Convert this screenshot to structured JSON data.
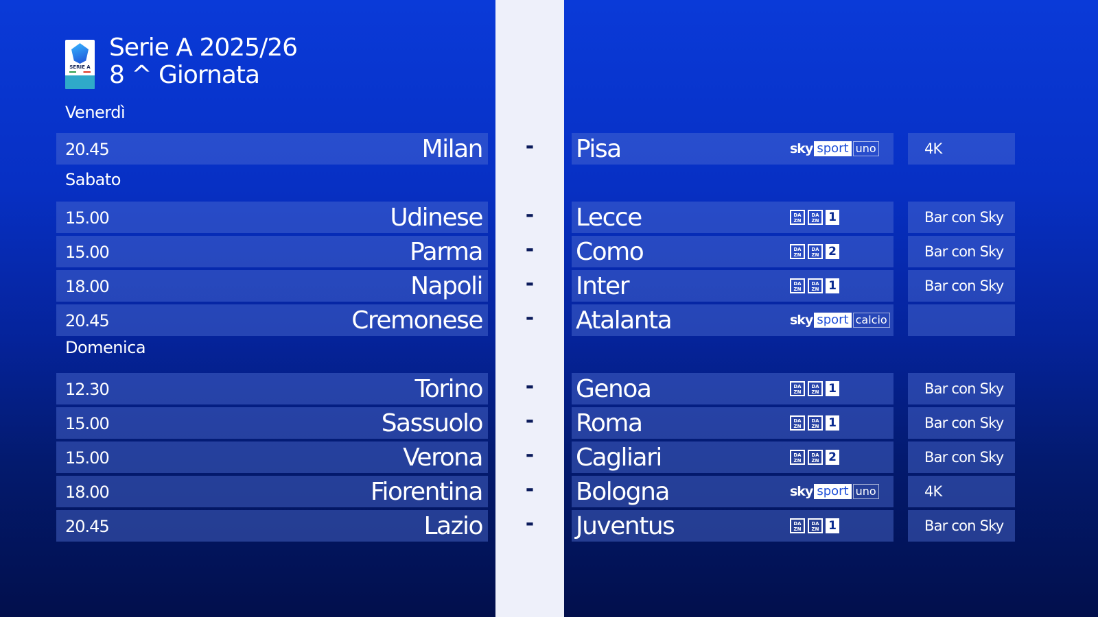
{
  "header": {
    "logo_text": "SERIE A",
    "title_line1": "Serie A 2025/26",
    "title_line2": "8 ^ Giornata"
  },
  "colors": {
    "background_top": "#0a3ad8",
    "background_bottom": "#020f4c",
    "strip": "#eef0fa"
  },
  "days": [
    {
      "label": "Venerdì",
      "matches": [
        {
          "time": "20.45",
          "home": "Milan",
          "sep": "-",
          "away": "Pisa",
          "channel": {
            "type": "sky",
            "brand": "sky",
            "sport": "sport",
            "name": "uno"
          },
          "extra": "4K"
        }
      ]
    },
    {
      "label": "Sabato",
      "matches": [
        {
          "time": "15.00",
          "home": "Udinese",
          "sep": "-",
          "away": "Lecce",
          "channel": {
            "type": "dazn",
            "number": "1"
          },
          "extra": "Bar con Sky"
        },
        {
          "time": "15.00",
          "home": "Parma",
          "sep": "-",
          "away": "Como",
          "channel": {
            "type": "dazn",
            "number": "2"
          },
          "extra": "Bar con Sky"
        },
        {
          "time": "18.00",
          "home": "Napoli",
          "sep": "-",
          "away": "Inter",
          "channel": {
            "type": "dazn",
            "number": "1"
          },
          "extra": "Bar con Sky"
        },
        {
          "time": "20.45",
          "home": "Cremonese",
          "sep": "-",
          "away": "Atalanta",
          "channel": {
            "type": "sky",
            "brand": "sky",
            "sport": "sport",
            "name": "calcio"
          },
          "extra": ""
        }
      ]
    },
    {
      "label": "Domenica",
      "matches": [
        {
          "time": "12.30",
          "home": "Torino",
          "sep": "-",
          "away": "Genoa",
          "channel": {
            "type": "dazn",
            "number": "1"
          },
          "extra": "Bar con Sky"
        },
        {
          "time": "15.00",
          "home": "Sassuolo",
          "sep": "-",
          "away": "Roma",
          "channel": {
            "type": "dazn",
            "number": "1"
          },
          "extra": "Bar con Sky"
        },
        {
          "time": "15.00",
          "home": "Verona",
          "sep": "-",
          "away": "Cagliari",
          "channel": {
            "type": "dazn",
            "number": "2"
          },
          "extra": "Bar con Sky"
        },
        {
          "time": "18.00",
          "home": "Fiorentina",
          "sep": "-",
          "away": "Bologna",
          "channel": {
            "type": "sky",
            "brand": "sky",
            "sport": "sport",
            "name": "uno"
          },
          "extra": "4K"
        },
        {
          "time": "20.45",
          "home": "Lazio",
          "sep": "-",
          "away": "Juventus",
          "channel": {
            "type": "dazn",
            "number": "1"
          },
          "extra": "Bar con Sky"
        }
      ]
    }
  ]
}
